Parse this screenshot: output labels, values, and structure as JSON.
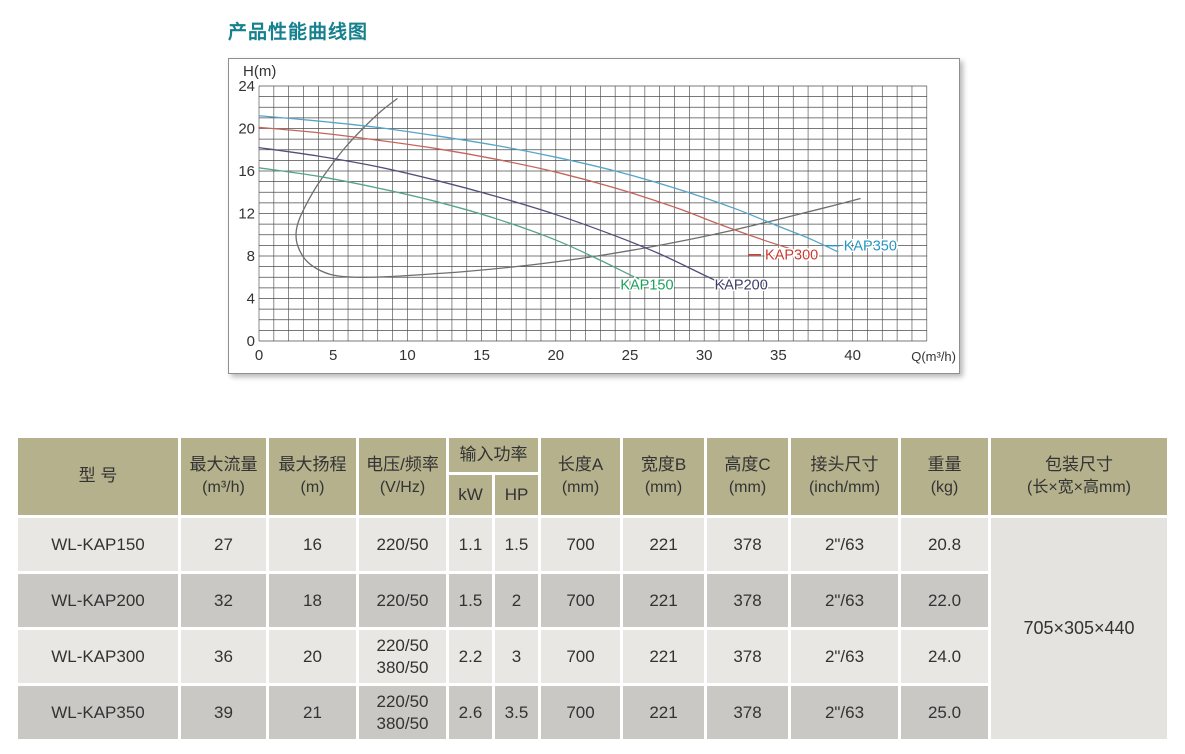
{
  "page": {
    "title": "产品性能曲线图"
  },
  "chart_data": {
    "type": "line",
    "title": "产品性能曲线图",
    "xlabel": "Q(m³/h)",
    "ylabel": "H(m)",
    "xlim": [
      0,
      45
    ],
    "ylim": [
      0,
      24
    ],
    "x_ticks": [
      0,
      5,
      10,
      15,
      20,
      25,
      30,
      35,
      40
    ],
    "y_ticks": [
      0,
      4,
      8,
      12,
      16,
      20,
      24
    ],
    "grid": "minor grid every 1 unit on both axes",
    "legend_position": "labels at curve ends",
    "series": [
      {
        "name": "gray-auxiliary-curve",
        "label": null,
        "label_pos": null,
        "leader_dash": false,
        "line_color": "#6e6e6e",
        "label_color": "#6e6e6e",
        "points": [
          [
            9.3,
            22.8
          ],
          [
            8.2,
            21.6
          ],
          [
            7,
            20
          ],
          [
            5.8,
            18.2
          ],
          [
            4.8,
            16.4
          ],
          [
            3.9,
            14.6
          ],
          [
            3.2,
            12.9
          ],
          [
            2.7,
            11.4
          ],
          [
            2.5,
            10.2
          ],
          [
            2.6,
            9
          ],
          [
            3.1,
            7.7
          ],
          [
            3.9,
            6.8
          ],
          [
            5,
            6.2
          ],
          [
            6.5,
            6
          ],
          [
            8.5,
            6.05
          ],
          [
            11,
            6.25
          ],
          [
            14,
            6.55
          ],
          [
            17,
            6.95
          ],
          [
            20,
            7.45
          ],
          [
            23,
            8.05
          ],
          [
            26,
            8.75
          ],
          [
            29,
            9.55
          ],
          [
            32,
            10.45
          ],
          [
            35,
            11.45
          ],
          [
            38,
            12.5
          ],
          [
            40.5,
            13.4
          ]
        ]
      },
      {
        "name": "KAP150",
        "label": "KAP150",
        "label_pos": [
          24.35,
          4.85
        ],
        "leader_dash": false,
        "line_color": "#55a585",
        "label_color": "#1ca05e",
        "points": [
          [
            0,
            16.3
          ],
          [
            4,
            15.5
          ],
          [
            8,
            14.4
          ],
          [
            12,
            13.1
          ],
          [
            16,
            11.5
          ],
          [
            20,
            9.5
          ],
          [
            23,
            7.6
          ],
          [
            25.5,
            5.9
          ],
          [
            27,
            5.1
          ]
        ]
      },
      {
        "name": "KAP200",
        "label": "KAP200",
        "label_pos": [
          30.7,
          4.85
        ],
        "leader_dash": false,
        "line_color": "#50507a",
        "label_color": "#3d3d68",
        "points": [
          [
            0,
            18.2
          ],
          [
            4,
            17.4
          ],
          [
            8,
            16.4
          ],
          [
            12,
            15.1
          ],
          [
            16,
            13.6
          ],
          [
            20,
            11.9
          ],
          [
            24,
            9.9
          ],
          [
            27,
            8.2
          ],
          [
            30,
            6.2
          ],
          [
            31.5,
            5.2
          ]
        ]
      },
      {
        "name": "KAP300",
        "label": "KAP300",
        "label_pos": [
          34.1,
          7.65
        ],
        "leader_dash": true,
        "line_color": "#c4655c",
        "label_color": "#cb3a32",
        "points": [
          [
            0,
            20.1
          ],
          [
            4,
            19.6
          ],
          [
            8,
            18.9
          ],
          [
            12,
            18.1
          ],
          [
            16,
            17.1
          ],
          [
            20,
            15.9
          ],
          [
            24,
            14.4
          ],
          [
            28,
            12.6
          ],
          [
            31,
            11
          ],
          [
            34,
            9.5
          ],
          [
            36,
            8.6
          ]
        ]
      },
      {
        "name": "KAP350",
        "label": "KAP350",
        "label_pos": [
          39.4,
          8.5
        ],
        "leader_dash": true,
        "line_color": "#55a5c8",
        "label_color": "#2596c6",
        "points": [
          [
            0,
            21.2
          ],
          [
            4,
            20.7
          ],
          [
            8,
            20.1
          ],
          [
            12,
            19.3
          ],
          [
            16,
            18.4
          ],
          [
            20,
            17.3
          ],
          [
            24,
            16
          ],
          [
            28,
            14.4
          ],
          [
            32,
            12.5
          ],
          [
            35,
            10.8
          ],
          [
            37,
            9.7
          ],
          [
            39,
            8.4
          ]
        ]
      }
    ]
  },
  "table": {
    "headers": [
      {
        "label": "型 号",
        "unit": ""
      },
      {
        "label": "最大流量",
        "unit": "(m³/h)"
      },
      {
        "label": "最大扬程",
        "unit": "(m)"
      },
      {
        "label": "电压/频率",
        "unit": "(V/Hz)"
      },
      {
        "label": "输入功率",
        "unit": ""
      },
      {
        "label": "长度A",
        "unit": "(mm)"
      },
      {
        "label": "宽度B",
        "unit": "(mm)"
      },
      {
        "label": "高度C",
        "unit": "(mm)"
      },
      {
        "label": "接头尺寸",
        "unit": "(inch/mm)"
      },
      {
        "label": "重量",
        "unit": "(kg)"
      },
      {
        "label": "包装尺寸",
        "unit": "(长×宽×高mm)"
      }
    ],
    "power_sub_headers": [
      "kW",
      "HP"
    ],
    "rows": [
      {
        "cells": [
          "WL-KAP150",
          "27",
          "16",
          "220/50",
          "1.1",
          "1.5",
          "700",
          "221",
          "378",
          "2\"/63",
          "20.8"
        ]
      },
      {
        "cells": [
          "WL-KAP200",
          "32",
          "18",
          "220/50",
          "1.5",
          "2",
          "700",
          "221",
          "378",
          "2\"/63",
          "22.0"
        ]
      },
      {
        "cells": [
          "WL-KAP300",
          "36",
          "20",
          "220/50\n380/50",
          "2.2",
          "3",
          "700",
          "221",
          "378",
          "2\"/63",
          "24.0"
        ]
      },
      {
        "cells": [
          "WL-KAP350",
          "39",
          "21",
          "220/50\n380/50",
          "2.6",
          "3.5",
          "700",
          "221",
          "378",
          "2\"/63",
          "25.0"
        ]
      }
    ],
    "packaging_size": "705×305×440"
  },
  "colors": {
    "title": "#15808e",
    "header_bg": "#b4b18c",
    "row_light": "#e9e7e4",
    "row_dark": "#cac8c5",
    "packaging_bg": "#e5e3e0",
    "grid_line": "#4d4d4d",
    "kap150": "#1ca05e",
    "kap200": "#3d3d68",
    "kap300": "#cb3a32",
    "kap350": "#2596c6"
  }
}
